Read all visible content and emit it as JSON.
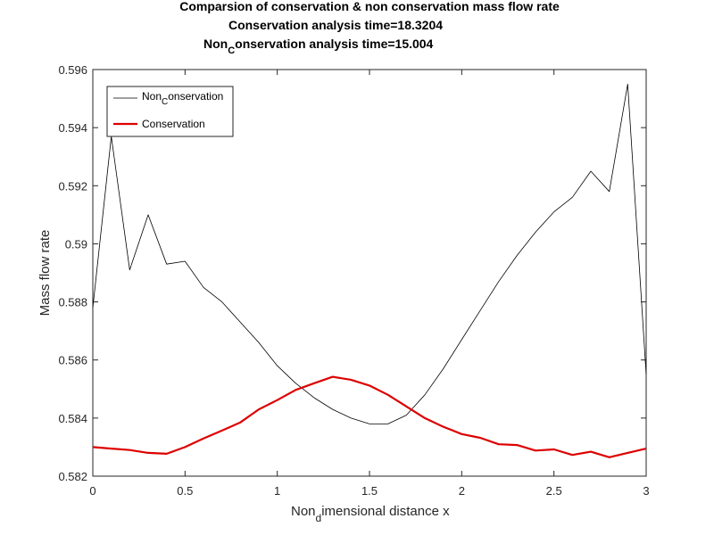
{
  "chart_data": {
    "type": "line",
    "title": {
      "line1": "Comparsion of conservation & non conservation mass flow rate",
      "line2": "Conservation analysis time=18.3204",
      "line3": "Non",
      "line3_sub": "C",
      "line3_rest": "onservation analysis time=15.004"
    },
    "xlabel": "Non",
    "xlabel_sub": "d",
    "xlabel_rest": "imensional distance x",
    "ylabel": "Mass flow rate",
    "xlim": [
      0,
      3
    ],
    "ylim": [
      0.582,
      0.596
    ],
    "xticks": [
      0,
      0.5,
      1,
      1.5,
      2,
      2.5,
      3
    ],
    "xticklabels": [
      "0",
      "0.5",
      "1",
      "1.5",
      "2",
      "2.5",
      "3"
    ],
    "yticks": [
      0.582,
      0.584,
      0.586,
      0.588,
      0.59,
      0.592,
      0.594,
      0.596
    ],
    "yticklabels": [
      "0.582",
      "0.584",
      "0.586",
      "0.588",
      "0.59",
      "0.592",
      "0.594",
      "0.596"
    ],
    "grid": false,
    "legend_position": "top-left",
    "x": [
      0,
      0.1,
      0.2,
      0.3,
      0.4,
      0.5,
      0.6,
      0.7,
      0.8,
      0.9,
      1.0,
      1.1,
      1.2,
      1.3,
      1.4,
      1.5,
      1.6,
      1.7,
      1.8,
      1.9,
      2.0,
      2.1,
      2.2,
      2.3,
      2.4,
      2.5,
      2.6,
      2.7,
      2.8,
      2.9,
      3.0
    ],
    "series": [
      {
        "name": "Non",
        "name_sub": "C",
        "name_rest": "onservation",
        "color": "#000000",
        "width": 0.8,
        "values": [
          0.5878,
          0.5937,
          0.5891,
          0.591,
          0.5893,
          0.5894,
          0.5885,
          0.588,
          0.5873,
          0.5866,
          0.5858,
          0.5852,
          0.5847,
          0.5843,
          0.584,
          0.5838,
          0.5838,
          0.5841,
          0.5848,
          0.5857,
          0.5867,
          0.5877,
          0.5887,
          0.5896,
          0.5904,
          0.5911,
          0.5916,
          0.5925,
          0.5918,
          0.5955,
          0.5855
        ]
      },
      {
        "name": "Conservation",
        "color": "#dd0000",
        "width": 2.2,
        "values": [
          0.583,
          0.58295,
          0.5829,
          0.5828,
          0.58277,
          0.583,
          0.5833,
          0.58357,
          0.58385,
          0.5843,
          0.58462,
          0.58497,
          0.5852,
          0.58542,
          0.58532,
          0.58512,
          0.5848,
          0.5844,
          0.584,
          0.5837,
          0.58345,
          0.58332,
          0.5831,
          0.58307,
          0.58288,
          0.58292,
          0.58273,
          0.58284,
          0.58265,
          0.5828,
          0.58295
        ]
      }
    ]
  }
}
